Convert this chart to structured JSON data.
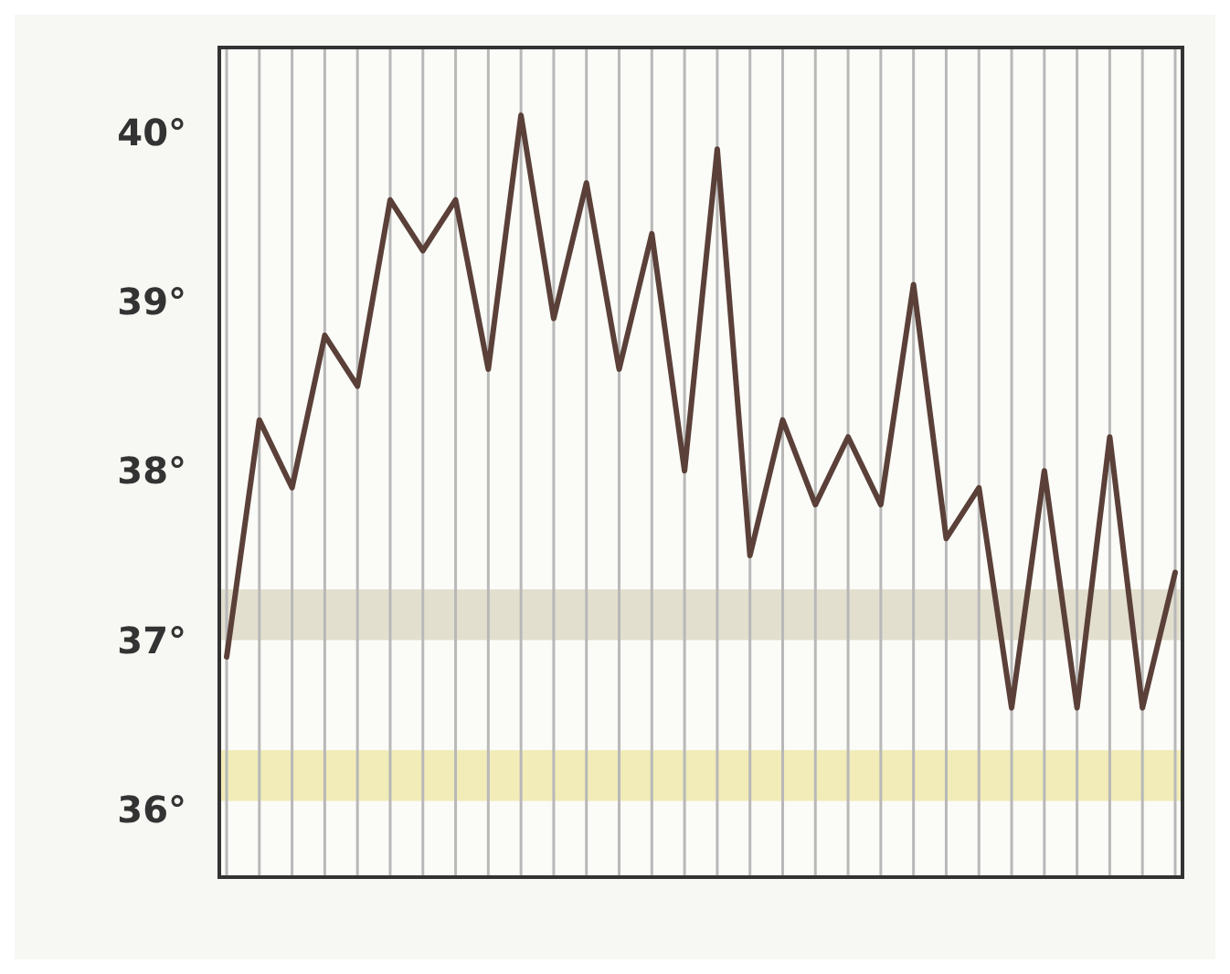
{
  "chart_data": {
    "type": "line",
    "categories": [
      null,
      null,
      null,
      null,
      null,
      null,
      null,
      null,
      null,
      null,
      null,
      null,
      null,
      null,
      null,
      null,
      null,
      null,
      null,
      null,
      null,
      null,
      null,
      null,
      null,
      null,
      null,
      null,
      null,
      null
    ],
    "series": [
      {
        "color": "#5a4038",
        "values": [
          36.9,
          38.3,
          37.9,
          38.8,
          38.5,
          39.6,
          39.3,
          39.6,
          38.6,
          40.1,
          38.9,
          39.7,
          38.6,
          39.4,
          38.0,
          39.9,
          37.5,
          38.3,
          37.8,
          38.2,
          37.8,
          39.1,
          37.6,
          37.9,
          36.6,
          38.0,
          36.6,
          38.2,
          36.6,
          37.4
        ]
      }
    ],
    "ylim": [
      35.6,
      40.5
    ],
    "yticks": [
      {
        "value": 36,
        "label": "36°"
      },
      {
        "value": 37,
        "label": "37°"
      },
      {
        "value": 38,
        "label": "38°"
      },
      {
        "value": 39,
        "label": "39°"
      },
      {
        "value": 40,
        "label": "40°"
      }
    ],
    "bands": [
      {
        "axis": "y",
        "from": 36.05,
        "to": 36.35,
        "color": "#efe9a8"
      },
      {
        "axis": "y",
        "from": 37.0,
        "to": 37.3,
        "color": "#ddd8c4"
      }
    ],
    "grid": "x",
    "marker": "none",
    "line_style": "solid"
  }
}
